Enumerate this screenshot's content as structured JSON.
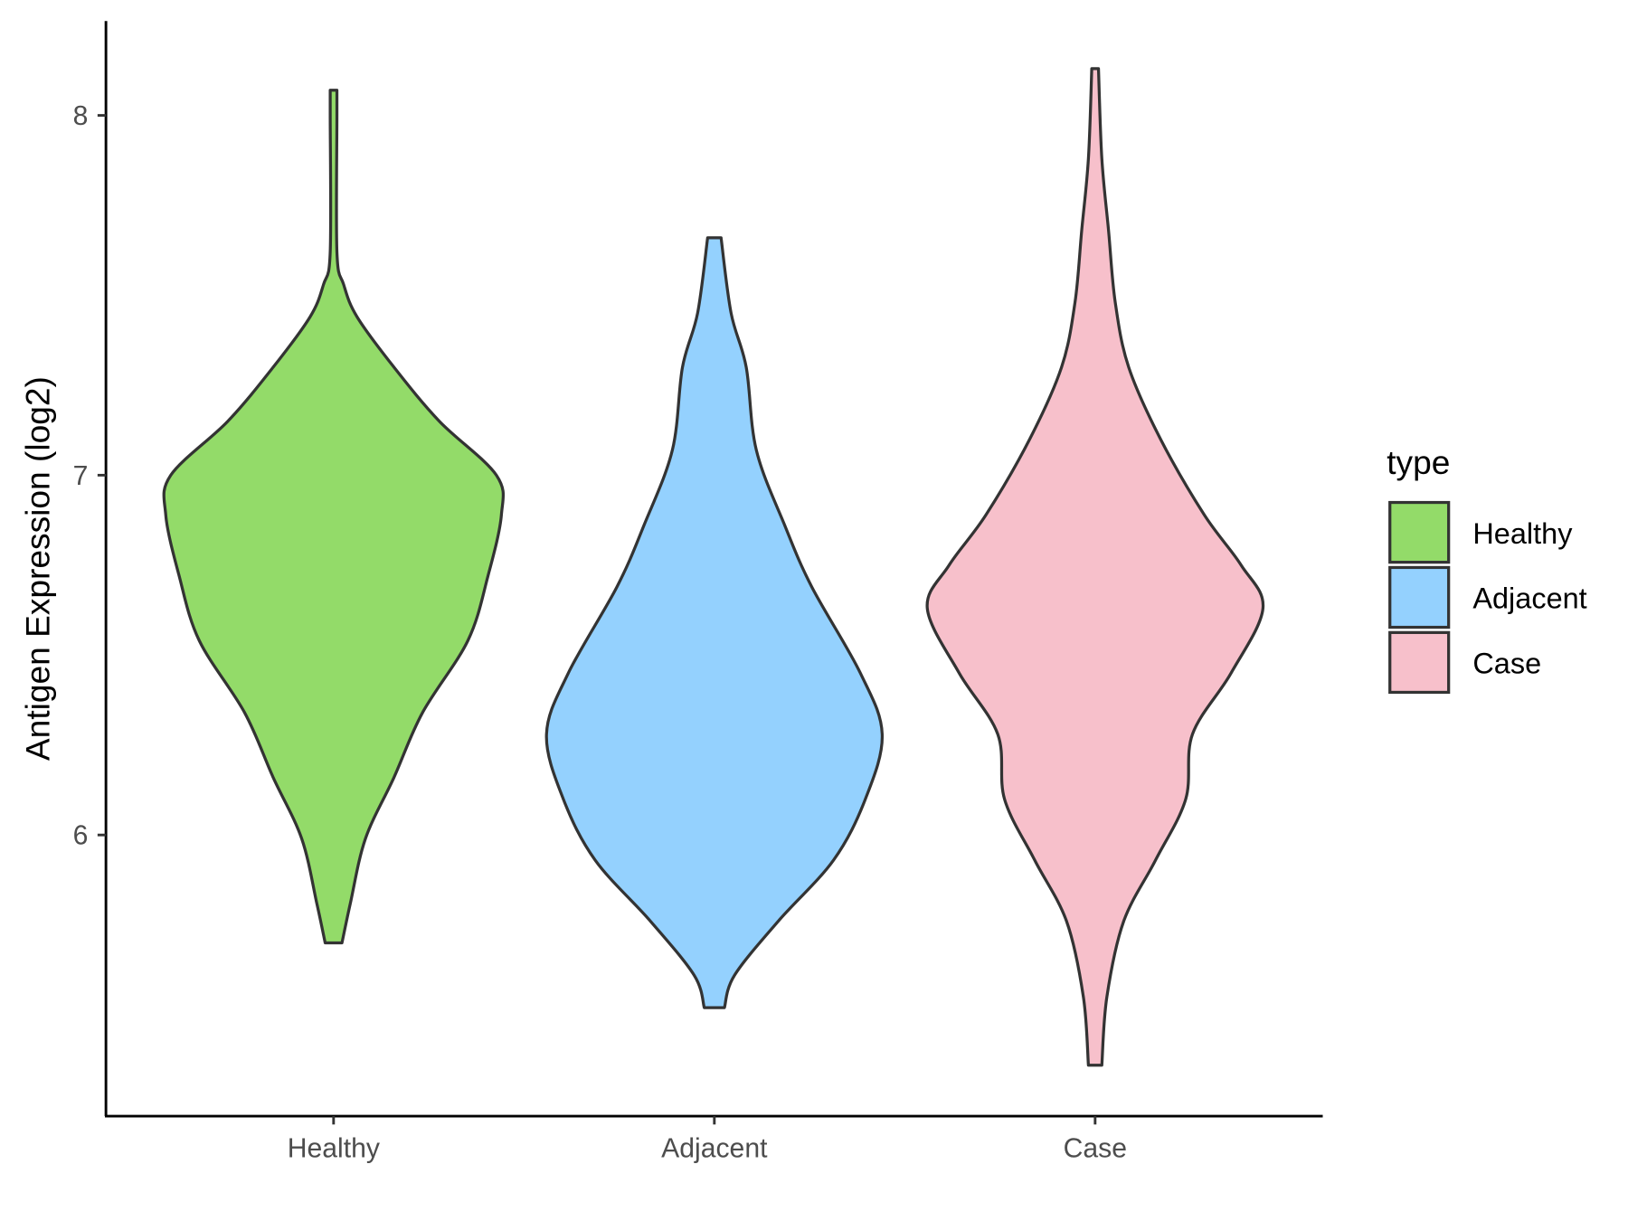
{
  "chart_data": {
    "type": "violin",
    "title": "",
    "xlabel": "",
    "ylabel": "Antigen Expression (log2)",
    "ylim": [
      5.22,
      8.26
    ],
    "yticks": [
      "6",
      "7",
      "8"
    ],
    "categories": [
      "Healthy",
      "Adjacent",
      "Case"
    ],
    "grid": false,
    "legend": {
      "title": "type",
      "position": "right",
      "entries": [
        "Healthy",
        "Adjacent",
        "Case"
      ]
    },
    "series": [
      {
        "name": "Healthy",
        "color": "#93DB69",
        "profile": [
          [
            8.07,
            0.02
          ],
          [
            8.0,
            0.02
          ],
          [
            7.62,
            0.02
          ],
          [
            7.53,
            0.06
          ],
          [
            7.44,
            0.14
          ],
          [
            7.3,
            0.36
          ],
          [
            7.15,
            0.63
          ],
          [
            7.0,
            0.97
          ],
          [
            6.89,
            1.0
          ],
          [
            6.72,
            0.92
          ],
          [
            6.54,
            0.8
          ],
          [
            6.34,
            0.53
          ],
          [
            6.16,
            0.36
          ],
          [
            5.99,
            0.19
          ],
          [
            5.81,
            0.1
          ],
          [
            5.7,
            0.05
          ]
        ]
      },
      {
        "name": "Adjacent",
        "color": "#94D1FE",
        "profile": [
          [
            7.66,
            0.04
          ],
          [
            7.45,
            0.1
          ],
          [
            7.3,
            0.19
          ],
          [
            7.07,
            0.25
          ],
          [
            6.86,
            0.42
          ],
          [
            6.69,
            0.58
          ],
          [
            6.45,
            0.87
          ],
          [
            6.28,
            1.0
          ],
          [
            6.1,
            0.9
          ],
          [
            5.93,
            0.71
          ],
          [
            5.76,
            0.38
          ],
          [
            5.61,
            0.12
          ],
          [
            5.52,
            0.06
          ]
        ]
      },
      {
        "name": "Case",
        "color": "#F7C0CB",
        "profile": [
          [
            8.13,
            0.02
          ],
          [
            7.88,
            0.04
          ],
          [
            7.68,
            0.08
          ],
          [
            7.48,
            0.12
          ],
          [
            7.3,
            0.2
          ],
          [
            7.1,
            0.39
          ],
          [
            6.89,
            0.65
          ],
          [
            6.75,
            0.87
          ],
          [
            6.63,
            1.0
          ],
          [
            6.45,
            0.81
          ],
          [
            6.28,
            0.58
          ],
          [
            6.1,
            0.54
          ],
          [
            5.93,
            0.36
          ],
          [
            5.76,
            0.17
          ],
          [
            5.55,
            0.07
          ],
          [
            5.36,
            0.04
          ]
        ]
      }
    ]
  }
}
